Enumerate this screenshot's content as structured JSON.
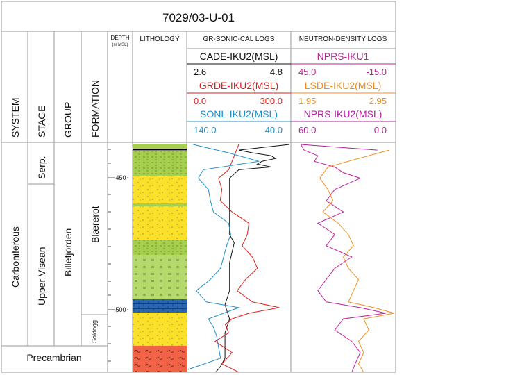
{
  "title": "7029/03-U-01",
  "columns": {
    "system": "SYSTEM",
    "stage": "STAGE",
    "group": "GROUP",
    "formation": "FORMATION",
    "depth": "DEPTH",
    "depth_unit": "(m MSL)",
    "lithology": "LITHOLOGY",
    "gr_sonic_cal": "GR-SONIC-CAL LOGS",
    "neutron_density": "NEUTRON-DENSITY LOGS"
  },
  "strat": {
    "system_main": "Carboniferous",
    "system_base": "Precambrian",
    "stage_upper": "Serp.",
    "stage_lower": "Upper Visean",
    "group": "Billefjorden",
    "formation_main": "Blærerot",
    "formation_lower": "Soldogg"
  },
  "depth_ticks": [
    "450",
    "500"
  ],
  "colors": {
    "cade": "#111111",
    "grde": "#e01e1e",
    "sonl": "#1f8fc9",
    "npi1": "#c21f9a",
    "lsde": "#f28c1c",
    "np2": "#b01fa0",
    "sand": "#fbe02a",
    "green": "#a6cf4e",
    "blue": "#2a67b3",
    "basement": "#f16346"
  },
  "chart_data": {
    "type": "line",
    "title": "7029/03-U-01",
    "y_axis": {
      "label": "DEPTH (m MSL)",
      "range": [
        438,
        519
      ],
      "ticks": [
        450,
        500
      ],
      "inverted": true
    },
    "track_gr_sonic_cal": {
      "title": "GR-SONIC-CAL LOGS",
      "curves": [
        {
          "name": "CADE-IKU2(MSL)",
          "min": "2.6",
          "max": "4.8",
          "color": "#111111",
          "depth": [
            438,
            440,
            441,
            442,
            443,
            444,
            445,
            446,
            447,
            450,
            455,
            460,
            465,
            470,
            473,
            480,
            485,
            490,
            495,
            500,
            505,
            510,
            514,
            517,
            519
          ],
          "values": [
            4.8,
            3.7,
            4.0,
            4.4,
            4.5,
            4.2,
            4.1,
            4.4,
            3.7,
            3.5,
            3.5,
            3.5,
            3.5,
            3.5,
            3.6,
            3.5,
            3.5,
            3.5,
            3.4,
            3.5,
            3.4,
            3.4,
            3.4,
            3.3,
            3.2
          ]
        },
        {
          "name": "GRDE-IKU2(MSL)",
          "min": "0.0",
          "max": "300.0",
          "color": "#e01e1e",
          "depth": [
            438,
            441,
            444,
            447,
            450,
            454,
            458,
            462,
            466,
            470,
            474,
            478,
            482,
            486,
            490,
            494,
            496,
            498,
            500,
            502,
            505,
            508,
            512,
            516,
            519
          ],
          "values": [
            150,
            140,
            130,
            120,
            90,
            100,
            95,
            130,
            180,
            175,
            160,
            190,
            205,
            170,
            145,
            190,
            270,
            180,
            130,
            110,
            120,
            80,
            130,
            100,
            150
          ]
        },
        {
          "name": "SONL-IKU2(MSL)",
          "min": "140.0",
          "max": "40.0",
          "color": "#1f8fc9",
          "depth": [
            438,
            441,
            444,
            447,
            450,
            454,
            458,
            462,
            466,
            470,
            474,
            478,
            482,
            486,
            490,
            494,
            496,
            498,
            500,
            503,
            506,
            510,
            514,
            518
          ],
          "values": [
            135,
            100,
            70,
            125,
            130,
            120,
            118,
            115,
            100,
            98,
            102,
            105,
            108,
            118,
            132,
            122,
            90,
            105,
            120,
            115,
            112,
            110,
            108,
            140
          ]
        }
      ]
    },
    "track_neutron_density": {
      "title": "NEUTRON-DENSITY LOGS",
      "curves": [
        {
          "name": "NPRS-IKU1",
          "min": "45.0",
          "max": "-15.0",
          "color": "#c21f9a",
          "depth": [
            438,
            440,
            442,
            444,
            446,
            448,
            450,
            454,
            458,
            462,
            466,
            470,
            474,
            478,
            482,
            486,
            490,
            494,
            496,
            498,
            500,
            504,
            508,
            512,
            516,
            519
          ],
          "values": [
            40,
            38,
            30,
            32,
            20,
            15,
            5,
            20,
            25,
            15,
            30,
            20,
            25,
            10,
            20,
            25,
            30,
            25,
            5,
            -10,
            15,
            20,
            10,
            5,
            8,
            10
          ]
        },
        {
          "name": "LSDE-IKU2(MSL)",
          "min": "1.95",
          "max": "2.95",
          "color": "#f28c1c",
          "depth": [
            440,
            443,
            446,
            450,
            454,
            458,
            462,
            466,
            470,
            474,
            478,
            482,
            486,
            490,
            494,
            496,
            498,
            500,
            504,
            508,
            512,
            516,
            519
          ],
          "values": [
            2.9,
            2.6,
            2.3,
            2.22,
            2.3,
            2.35,
            2.25,
            2.4,
            2.5,
            2.55,
            2.45,
            2.5,
            2.6,
            2.55,
            2.5,
            2.75,
            2.95,
            2.65,
            2.7,
            2.6,
            2.65,
            2.6,
            2.65
          ]
        },
        {
          "name": "NPRS-IKU2(MSL)",
          "min": "60.0",
          "max": "0.0",
          "color": "#b01fa0",
          "depth": [
            438,
            440
          ],
          "values": [
            55,
            10
          ]
        }
      ]
    }
  }
}
